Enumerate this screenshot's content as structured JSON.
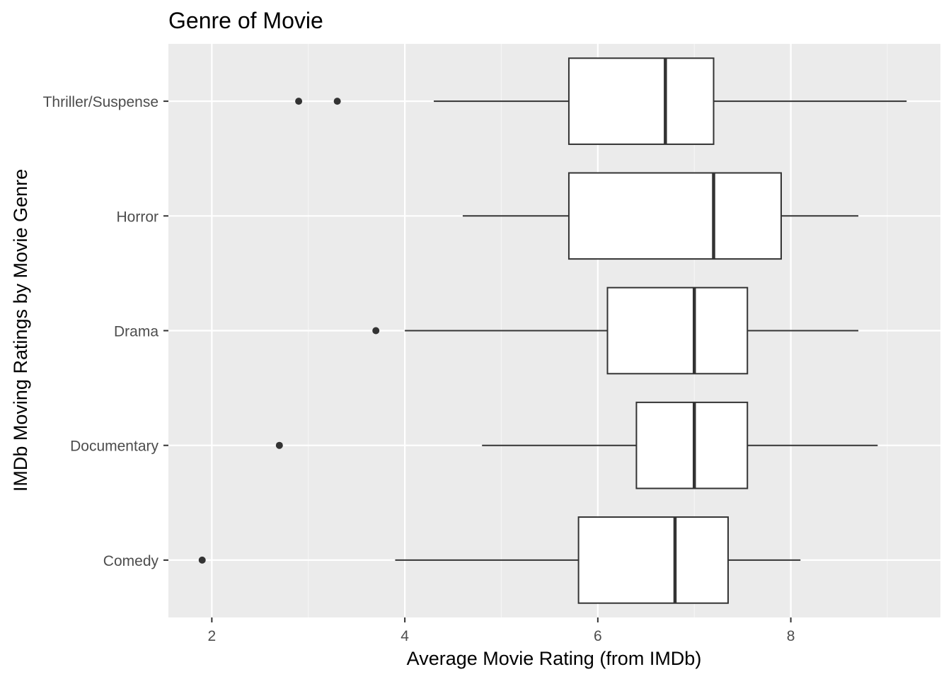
{
  "chart_data": {
    "type": "boxplot",
    "orientation": "horizontal",
    "title": "Genre of Movie",
    "xlabel": "Average Movie Rating (from IMDb)",
    "ylabel": "IMDb Moving Ratings by Movie Genre",
    "xlim": [
      1.55,
      9.55
    ],
    "x_ticks": [
      2,
      4,
      6,
      8
    ],
    "categories": [
      "Comedy",
      "Documentary",
      "Drama",
      "Horror",
      "Thriller/Suspense"
    ],
    "boxes": [
      {
        "category": "Comedy",
        "lower_whisker": 3.9,
        "q1": 5.8,
        "median": 6.8,
        "q3": 7.35,
        "upper_whisker": 8.1,
        "outliers": [
          1.9
        ]
      },
      {
        "category": "Documentary",
        "lower_whisker": 4.8,
        "q1": 6.4,
        "median": 7.0,
        "q3": 7.55,
        "upper_whisker": 8.9,
        "outliers": [
          2.7
        ]
      },
      {
        "category": "Drama",
        "lower_whisker": 4.0,
        "q1": 6.1,
        "median": 7.0,
        "q3": 7.55,
        "upper_whisker": 8.7,
        "outliers": [
          3.7
        ]
      },
      {
        "category": "Horror",
        "lower_whisker": 4.6,
        "q1": 5.7,
        "median": 7.2,
        "q3": 7.9,
        "upper_whisker": 8.7,
        "outliers": []
      },
      {
        "category": "Thriller/Suspense",
        "lower_whisker": 4.3,
        "q1": 5.7,
        "median": 6.7,
        "q3": 7.2,
        "upper_whisker": 9.2,
        "outliers": [
          2.9,
          3.3
        ]
      }
    ],
    "grid": true,
    "legend": "none",
    "colors": {
      "panel_background": "#ebebeb",
      "grid_major": "#ffffff",
      "grid_minor": "#f5f5f5",
      "box_fill": "#ffffff",
      "box_stroke": "#333333",
      "tick_text": "#4d4d4d"
    }
  }
}
